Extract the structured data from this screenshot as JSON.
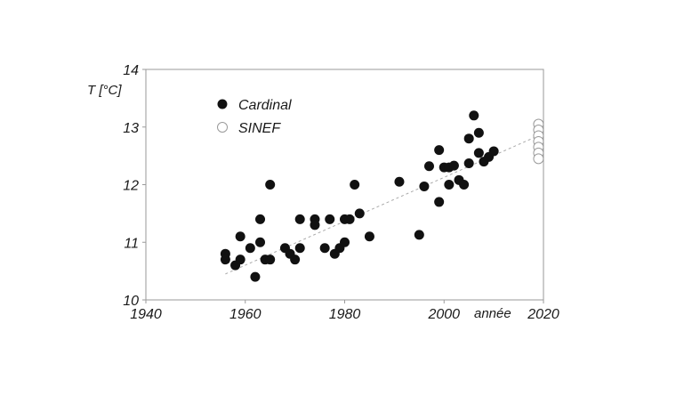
{
  "chart_data": {
    "type": "scatter",
    "ylabel": "T [°C]",
    "xlabel": "année",
    "xlim": [
      1940,
      2020
    ],
    "ylim": [
      10,
      14
    ],
    "x_ticks": [
      "1940",
      "1960",
      "1980",
      "2000",
      "2020"
    ],
    "y_ticks": [
      "10",
      "11",
      "12",
      "13",
      "14"
    ],
    "grid": false,
    "legend_position": "top-left",
    "series": [
      {
        "name": "Cardinal",
        "marker": "filled-circle",
        "color": "#111111",
        "points": [
          [
            1956,
            10.8
          ],
          [
            1956,
            10.7
          ],
          [
            1958,
            10.6
          ],
          [
            1959,
            10.7
          ],
          [
            1959,
            11.1
          ],
          [
            1961,
            10.9
          ],
          [
            1962,
            10.4
          ],
          [
            1963,
            11.0
          ],
          [
            1963,
            11.4
          ],
          [
            1964,
            10.7
          ],
          [
            1965,
            10.7
          ],
          [
            1965,
            12.0
          ],
          [
            1968,
            10.9
          ],
          [
            1969,
            10.8
          ],
          [
            1970,
            10.7
          ],
          [
            1971,
            10.9
          ],
          [
            1971,
            11.4
          ],
          [
            1974,
            11.4
          ],
          [
            1974,
            11.3
          ],
          [
            1976,
            10.9
          ],
          [
            1977,
            11.4
          ],
          [
            1978,
            10.8
          ],
          [
            1979,
            10.9
          ],
          [
            1980,
            11.0
          ],
          [
            1980,
            11.4
          ],
          [
            1981,
            11.4
          ],
          [
            1982,
            12.0
          ],
          [
            1983,
            11.5
          ],
          [
            1985,
            11.1
          ],
          [
            1991,
            12.05
          ],
          [
            1995,
            11.13
          ],
          [
            1996,
            11.97
          ],
          [
            1997,
            12.32
          ],
          [
            1999,
            12.6
          ],
          [
            1999,
            11.7
          ],
          [
            2000,
            12.3
          ],
          [
            2001,
            12.3
          ],
          [
            2001,
            12.0
          ],
          [
            2002,
            12.33
          ],
          [
            2003,
            12.08
          ],
          [
            2004,
            12.0
          ],
          [
            2005,
            12.8
          ],
          [
            2005,
            12.37
          ],
          [
            2006,
            13.2
          ],
          [
            2007,
            12.9
          ],
          [
            2007,
            12.55
          ],
          [
            2008,
            12.4
          ],
          [
            2009,
            12.48
          ],
          [
            2010,
            12.58
          ]
        ]
      },
      {
        "name": "SINEF",
        "marker": "open-circle",
        "color": "#9a9a9a",
        "points": [
          [
            2019,
            13.05
          ],
          [
            2019,
            12.95
          ],
          [
            2019,
            12.85
          ],
          [
            2019,
            12.75
          ],
          [
            2019,
            12.65
          ],
          [
            2019,
            12.55
          ],
          [
            2019,
            12.45
          ]
        ]
      }
    ],
    "trendline": {
      "style": "dashed",
      "color": "#aaaaaa",
      "x": [
        1956,
        2019
      ],
      "y": [
        10.45,
        12.85
      ]
    }
  }
}
